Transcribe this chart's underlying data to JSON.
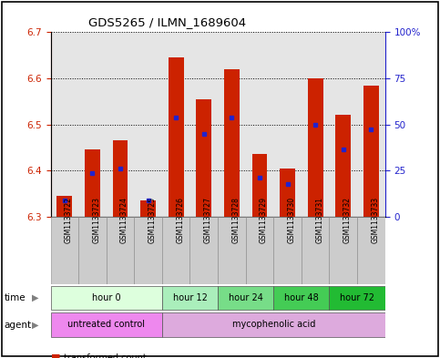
{
  "title": "GDS5265 / ILMN_1689604",
  "samples": [
    "GSM1133722",
    "GSM1133723",
    "GSM1133724",
    "GSM1133725",
    "GSM1133726",
    "GSM1133727",
    "GSM1133728",
    "GSM1133729",
    "GSM1133730",
    "GSM1133731",
    "GSM1133732",
    "GSM1133733"
  ],
  "bar_values": [
    6.345,
    6.445,
    6.465,
    6.335,
    6.645,
    6.555,
    6.62,
    6.435,
    6.405,
    6.6,
    6.52,
    6.585
  ],
  "bar_bottom": 6.3,
  "blue_values": [
    6.335,
    6.395,
    6.405,
    6.335,
    6.515,
    6.48,
    6.515,
    6.385,
    6.37,
    6.5,
    6.445,
    6.49
  ],
  "ylim_left": [
    6.3,
    6.7
  ],
  "ylim_right": [
    0,
    100
  ],
  "yticks_left": [
    6.3,
    6.4,
    6.5,
    6.6,
    6.7
  ],
  "yticks_right": [
    0,
    25,
    50,
    75,
    100
  ],
  "ytick_labels_right": [
    "0",
    "25",
    "50",
    "75",
    "100%"
  ],
  "bar_color": "#cc2200",
  "blue_color": "#2222cc",
  "time_groups": [
    {
      "label": "hour 0",
      "start": 0,
      "end": 4,
      "color": "#ddffdd"
    },
    {
      "label": "hour 12",
      "start": 4,
      "end": 6,
      "color": "#aaeebb"
    },
    {
      "label": "hour 24",
      "start": 6,
      "end": 8,
      "color": "#77dd88"
    },
    {
      "label": "hour 48",
      "start": 8,
      "end": 10,
      "color": "#44cc55"
    },
    {
      "label": "hour 72",
      "start": 10,
      "end": 12,
      "color": "#22bb33"
    }
  ],
  "agent_groups": [
    {
      "label": "untreated control",
      "start": 0,
      "end": 4,
      "color": "#ee88ee"
    },
    {
      "label": "mycophenolic acid",
      "start": 4,
      "end": 12,
      "color": "#ddaadd"
    }
  ],
  "bar_width": 0.55,
  "left_tick_color": "#cc2200",
  "right_tick_color": "#2222cc",
  "col_bg_color": "#cccccc",
  "col_bg_alpha": 0.5
}
